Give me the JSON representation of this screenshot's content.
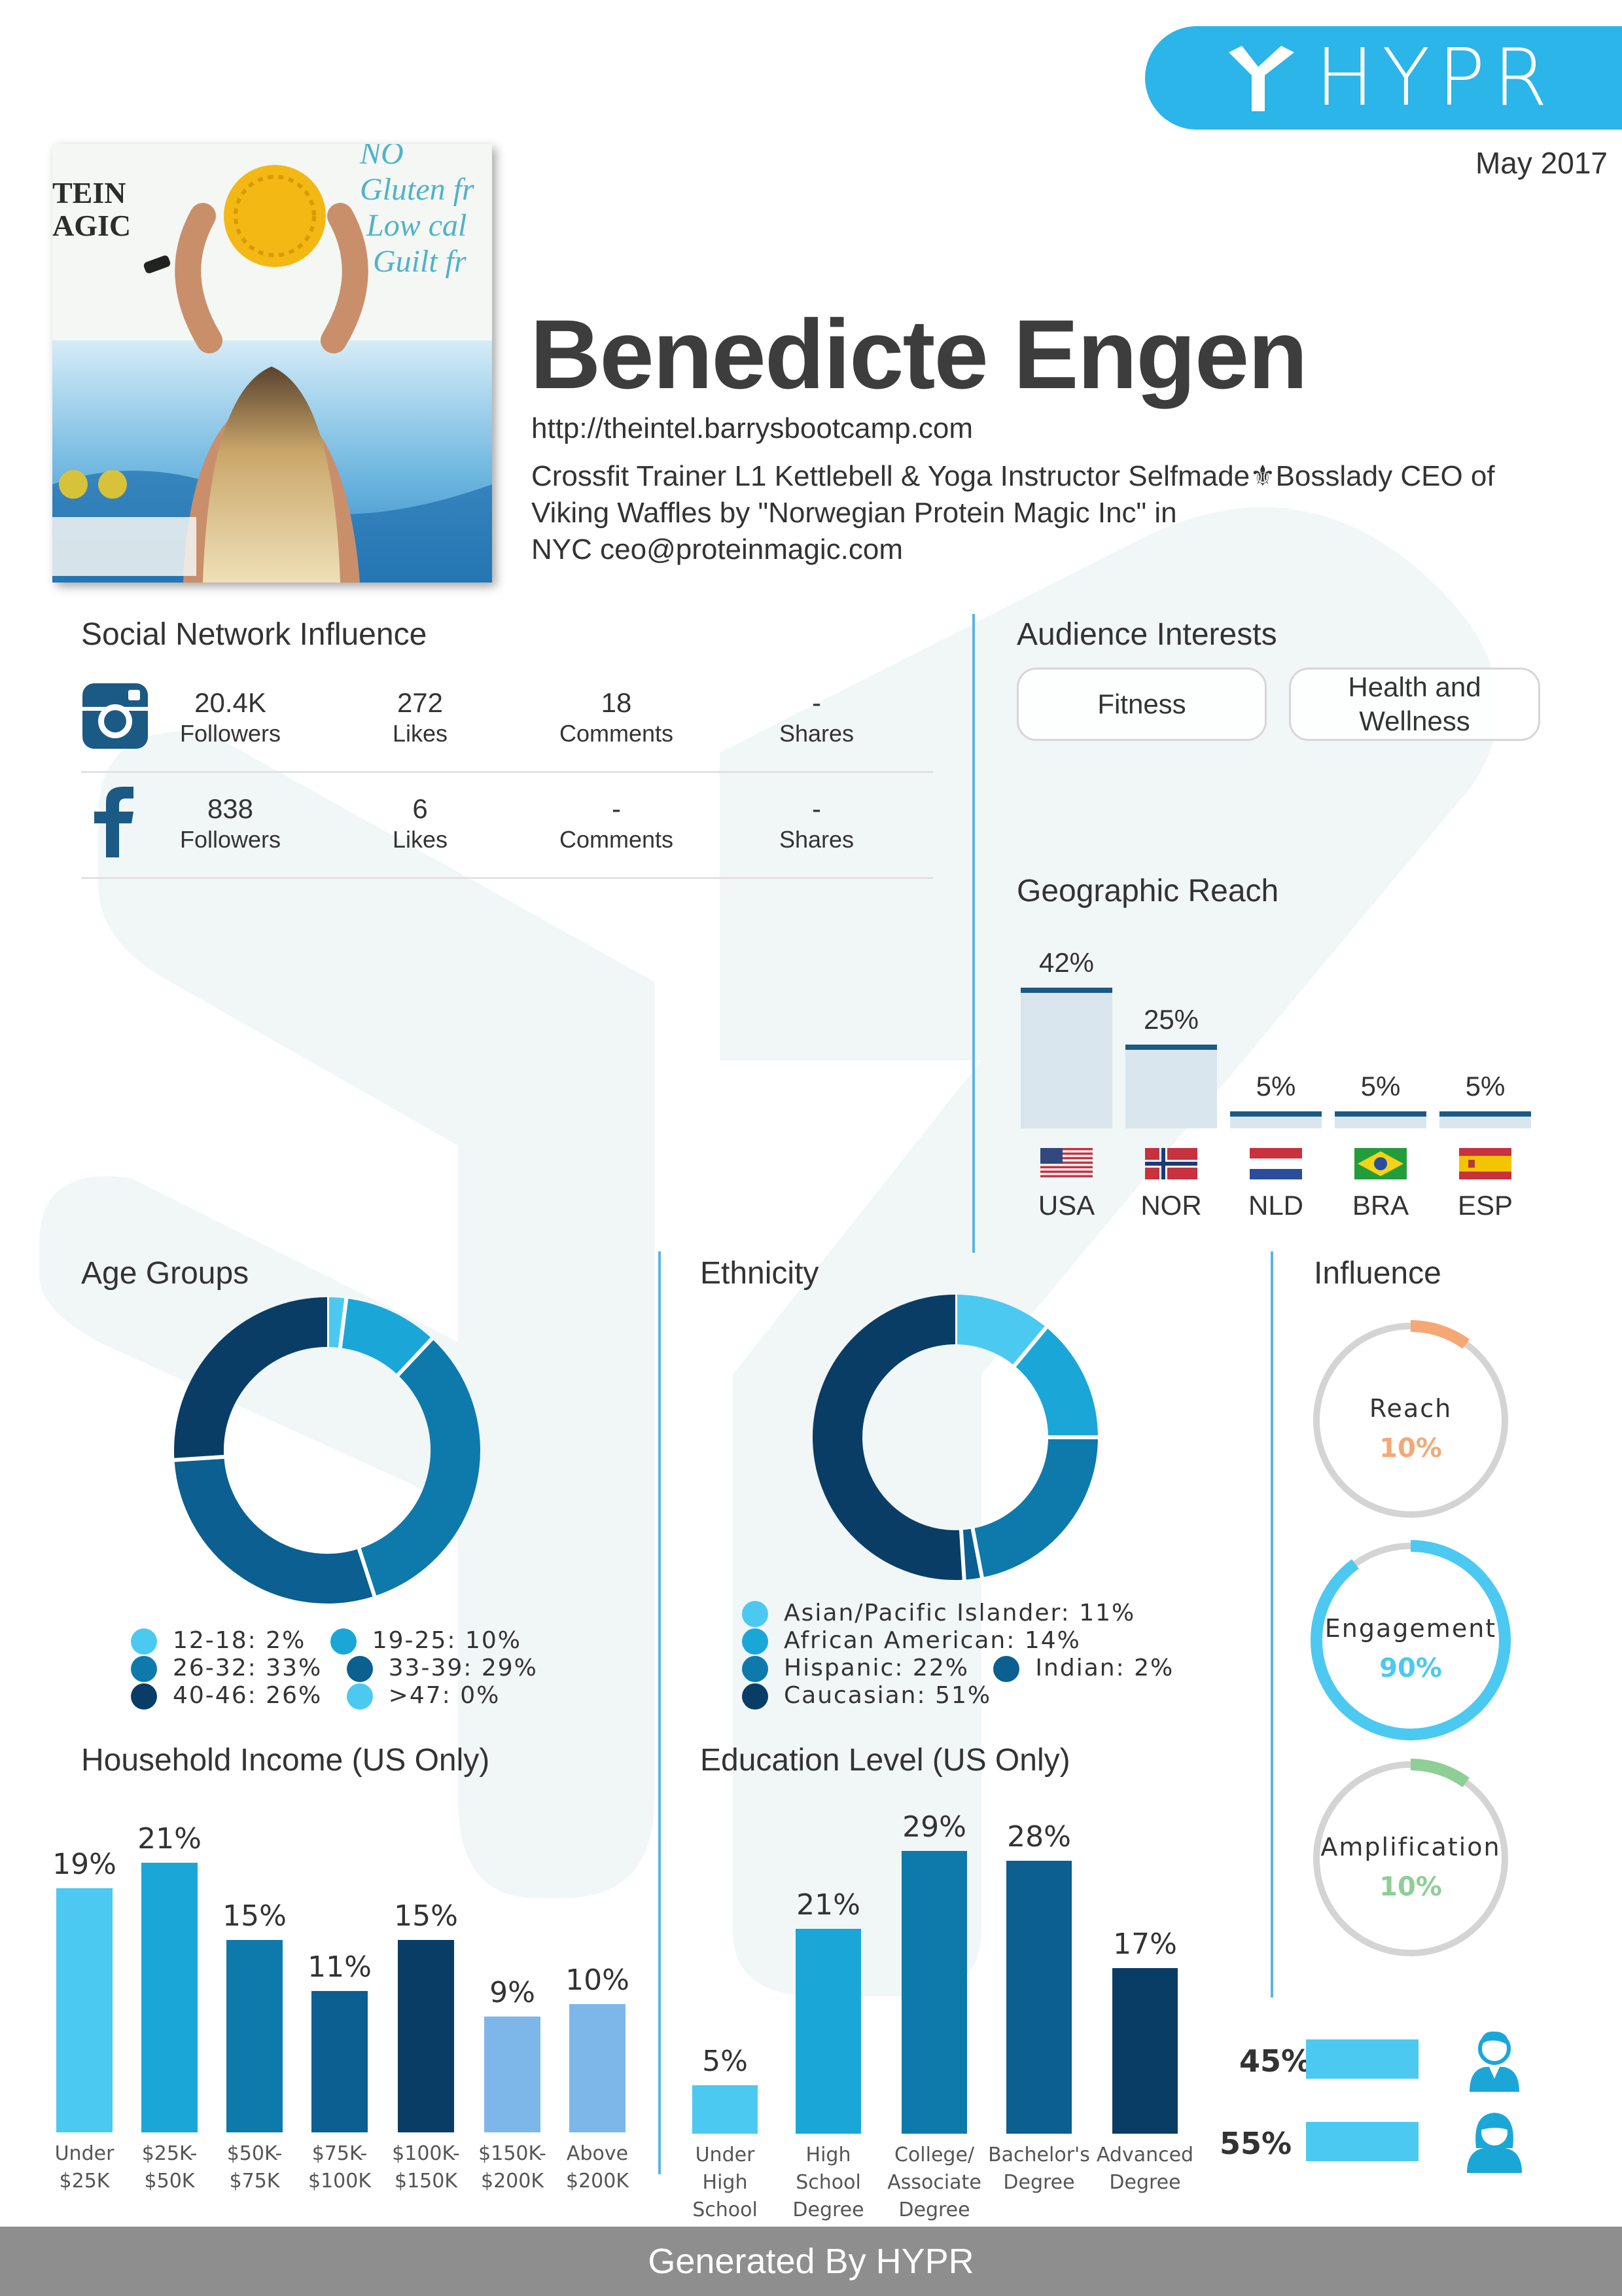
{
  "brand": {
    "name": "HYPR",
    "accent": "#2bb5e8"
  },
  "report_date": "May 2017",
  "profile": {
    "name": "Benedicte Engen",
    "url": "http://theintel.barrysbootcamp.com",
    "bio_line1": "Crossfit Trainer L1 Kettlebell & Yoga Instructor Selfmade⚜Bosslady CEO of",
    "bio_line2": "Viking Waffles by \"Norwegian Protein Magic Inc\" in",
    "bio_line3": "NYC   ceo@proteinmagic.com",
    "photo_text": [
      "NO",
      "Gluten fr",
      "Low cal",
      "Guilt fr",
      "TEIN",
      "AGIC"
    ]
  },
  "social": {
    "title": "Social Network Influence",
    "networks": [
      {
        "icon": "instagram-icon",
        "followers": "20.4K",
        "followers_label": "Followers",
        "likes": "272",
        "likes_label": "Likes",
        "comments": "18",
        "comments_label": "Comments",
        "shares": "-",
        "shares_label": "Shares"
      },
      {
        "icon": "facebook-icon",
        "followers": "838",
        "followers_label": "Followers",
        "likes": "6",
        "likes_label": "Likes",
        "comments": "-",
        "comments_label": "Comments",
        "shares": "-",
        "shares_label": "Shares"
      }
    ]
  },
  "interests": {
    "title": "Audience Interests",
    "items": [
      "Fitness",
      "Health and Wellness"
    ]
  },
  "geo": {
    "title": "Geographic Reach",
    "countries": [
      {
        "code": "USA",
        "pct": "42%",
        "value": 42
      },
      {
        "code": "NOR",
        "pct": "25%",
        "value": 25
      },
      {
        "code": "NLD",
        "pct": "5%",
        "value": 5
      },
      {
        "code": "BRA",
        "pct": "5%",
        "value": 5
      },
      {
        "code": "ESP",
        "pct": "5%",
        "value": 5
      }
    ]
  },
  "age": {
    "title": "Age Groups",
    "legend": [
      {
        "label": "12-18: 2%",
        "color": "#4cc9f0"
      },
      {
        "label": "19-25: 10%",
        "color": "#1aa7d8"
      },
      {
        "label": "26-32: 33%",
        "color": "#0e7aab"
      },
      {
        "label": "33-39: 29%",
        "color": "#0b5f91"
      },
      {
        "label": "40-46: 26%",
        "color": "#0a3d66"
      },
      {
        "label": ">47: 0%",
        "color": "#4cc9f0"
      }
    ]
  },
  "ethnicity": {
    "title": "Ethnicity",
    "legend": [
      {
        "label": "Asian/Pacific Islander: 11%",
        "color": "#4cc9f0"
      },
      {
        "label": "African American: 14%",
        "color": "#1aa7d8"
      },
      {
        "label": "Hispanic: 22%",
        "color": "#0e7aab"
      },
      {
        "label": "Indian: 2%",
        "color": "#0b5f91"
      },
      {
        "label": "Caucasian: 51%",
        "color": "#0a3d66"
      }
    ]
  },
  "influence": {
    "title": "Influence",
    "metrics": [
      {
        "label": "Reach",
        "value": "10%",
        "fraction": 0.1,
        "color": "#f5a876"
      },
      {
        "label": "Engagement",
        "value": "90%",
        "fraction": 0.9,
        "color": "#4cc9f0"
      },
      {
        "label": "Amplification",
        "value": "10%",
        "fraction": 0.1,
        "color": "#8fce95"
      }
    ]
  },
  "gender": [
    {
      "pct": "45%",
      "icon": "male-user-icon"
    },
    {
      "pct": "55%",
      "icon": "female-user-icon"
    }
  ],
  "income": {
    "title": "Household Income (US Only)"
  },
  "education": {
    "title": "Education Level (US Only)"
  },
  "chart_data": [
    {
      "type": "bar",
      "title": "Geographic Reach",
      "categories": [
        "USA",
        "NOR",
        "NLD",
        "BRA",
        "ESP"
      ],
      "values": [
        42,
        25,
        5,
        5,
        5
      ],
      "ylim": [
        0,
        45
      ],
      "grid": false
    },
    {
      "type": "pie",
      "title": "Age Groups",
      "categories": [
        "12-18",
        "19-25",
        "26-32",
        "33-39",
        "40-46",
        ">47"
      ],
      "values": [
        2,
        10,
        33,
        29,
        26,
        0
      ],
      "colors": [
        "#4cc9f0",
        "#1aa7d8",
        "#0e7aab",
        "#0b5f91",
        "#0a3d66",
        "#4cc9f0"
      ],
      "legend": "bottom"
    },
    {
      "type": "pie",
      "title": "Ethnicity",
      "categories": [
        "Asian/Pacific Islander",
        "African American",
        "Hispanic",
        "Indian",
        "Caucasian"
      ],
      "values": [
        11,
        14,
        22,
        2,
        51
      ],
      "colors": [
        "#4cc9f0",
        "#1aa7d8",
        "#0e7aab",
        "#0b5f91",
        "#0a3d66"
      ],
      "legend": "bottom"
    },
    {
      "type": "bar",
      "title": "Household Income (US Only)",
      "categories": [
        "Under $25K",
        "$25K-$50K",
        "$50K-$75K",
        "$75K-$100K",
        "$100K-$150K",
        "$150K-$200K",
        "Above $200K"
      ],
      "values": [
        19,
        21,
        15,
        11,
        15,
        9,
        10
      ],
      "labels": [
        "19%",
        "21%",
        "15%",
        "11%",
        "15%",
        "9%",
        "10%"
      ],
      "colors": [
        "#4cc9f0",
        "#1aa7d8",
        "#0e7aab",
        "#0b5f91",
        "#0a3d66",
        "#7db7ea",
        "#7db7ea"
      ],
      "ylim": [
        0,
        21
      ],
      "grid": false
    },
    {
      "type": "bar",
      "title": "Education Level (US Only)",
      "categories": [
        "Under High School",
        "High School Degree",
        "College/ Associate Degree",
        "Bachelor's Degree",
        "Advanced Degree"
      ],
      "values": [
        5,
        21,
        29,
        28,
        17
      ],
      "labels": [
        "5%",
        "21%",
        "29%",
        "28%",
        "17%"
      ],
      "colors": [
        "#4cc9f0",
        "#1aa7d8",
        "#0e7aab",
        "#0b5f91",
        "#0a3d66"
      ],
      "ylim": [
        0,
        29
      ],
      "grid": false
    }
  ],
  "footer": "Generated By HYPR"
}
